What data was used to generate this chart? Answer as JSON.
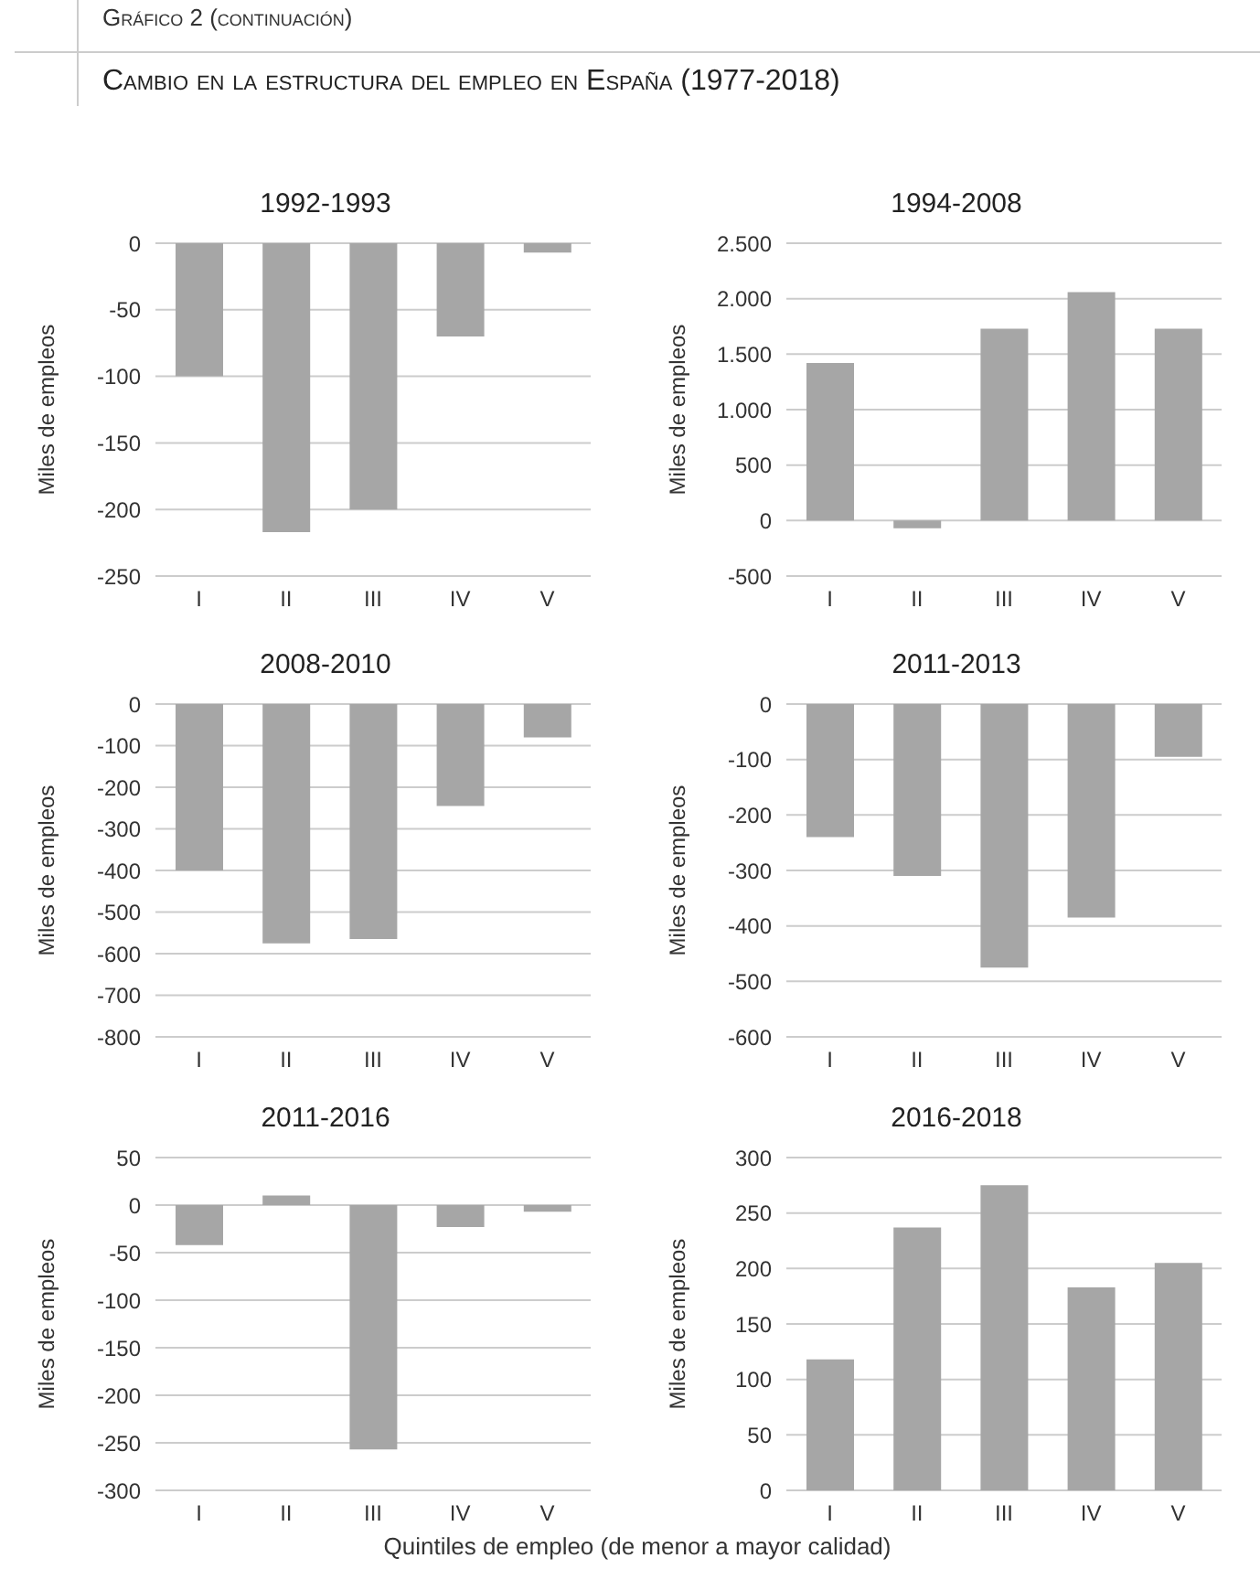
{
  "chart_data": [
    {
      "type": "bar",
      "title": "1992-1993",
      "annotations": [
        "Gráfico 2 (continuación)",
        "Cambio en la estructura del empleo en España (1977-2018)"
      ],
      "ylabel": "Miles de empleos",
      "categories": [
        "I",
        "II",
        "III",
        "IV",
        "V"
      ],
      "values": [
        -100,
        -217,
        -200,
        -70,
        -7
      ],
      "color": "#a6a6a6",
      "ylim": [
        -250,
        0
      ],
      "yticks": [
        0,
        -50,
        -100,
        -150,
        -200,
        -250
      ],
      "grid": "y",
      "legend": false
    },
    {
      "type": "bar",
      "title": "1994-2008",
      "ylabel": "Miles de empleos",
      "categories": [
        "I",
        "II",
        "III",
        "IV",
        "V"
      ],
      "values": [
        1420,
        -70,
        1730,
        2060,
        1730
      ],
      "color": "#a6a6a6",
      "ylim": [
        -500,
        2500
      ],
      "yticks": [
        {
          "value": 2500,
          "label": "2.500"
        },
        {
          "value": 2000,
          "label": "2.000"
        },
        {
          "value": 1500,
          "label": "1.500"
        },
        {
          "value": 1000,
          "label": "1.000"
        },
        500,
        0,
        -500
      ],
      "grid": "y",
      "legend": false
    },
    {
      "type": "bar",
      "title": "2008-2010",
      "ylabel": "Miles de empleos",
      "categories": [
        "I",
        "II",
        "III",
        "IV",
        "V"
      ],
      "values": [
        -400,
        -575,
        -565,
        -245,
        -80
      ],
      "color": "#a6a6a6",
      "ylim": [
        -800,
        0
      ],
      "yticks": [
        0,
        -100,
        -200,
        -300,
        -400,
        -500,
        -600,
        -700,
        -800
      ],
      "grid": "y",
      "legend": false
    },
    {
      "type": "bar",
      "title": "2011-2013",
      "ylabel": "Miles de empleos",
      "categories": [
        "I",
        "II",
        "III",
        "IV",
        "V"
      ],
      "values": [
        -240,
        -310,
        -475,
        -385,
        -95
      ],
      "color": "#a6a6a6",
      "ylim": [
        -600,
        0
      ],
      "yticks": [
        0,
        -100,
        -200,
        -300,
        -400,
        -500,
        -600
      ],
      "grid": "y",
      "legend": false
    },
    {
      "type": "bar",
      "title": "2011-2016",
      "ylabel": "Miles de empleos",
      "categories": [
        "I",
        "II",
        "III",
        "IV",
        "V"
      ],
      "values": [
        -42,
        10,
        -257,
        -23,
        -7
      ],
      "color": "#a6a6a6",
      "ylim": [
        -300,
        50
      ],
      "yticks": [
        50,
        0,
        -50,
        -100,
        -150,
        -200,
        -250,
        -300
      ],
      "grid": "y",
      "legend": false
    },
    {
      "type": "bar",
      "title": "2016-2018",
      "ylabel": "Miles de empleos",
      "annotations": [
        "Quintiles de empleo (de menor a mayor calidad)"
      ],
      "categories": [
        "I",
        "II",
        "III",
        "IV",
        "V"
      ],
      "values": [
        118,
        237,
        275,
        183,
        205
      ],
      "color": "#a6a6a6",
      "ylim": [
        0,
        300
      ],
      "yticks": [
        300,
        250,
        200,
        150,
        100,
        50,
        0
      ],
      "grid": "y",
      "legend": false
    }
  ]
}
